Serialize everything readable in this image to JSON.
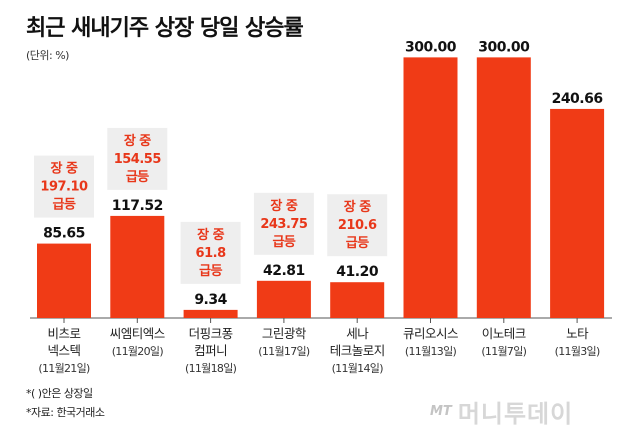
{
  "header": {
    "title": "최근 새내기주 상장 당일 상승률",
    "unit": "(단위: %)"
  },
  "chart_data": {
    "type": "bar",
    "title": "최근 새내기주 상장 당일 상승률",
    "ylabel": "",
    "xlabel": "",
    "ylim": [
      0,
      320
    ],
    "bar_color": "#f03b16",
    "callout_color": "#e8371a",
    "callout_bg": "#eeeeee",
    "categories": [
      {
        "name_lines": [
          "비츠로",
          "넥스텍"
        ],
        "date": "(11월21일)"
      },
      {
        "name_lines": [
          "씨엠티엑스"
        ],
        "date": "(11월20일)"
      },
      {
        "name_lines": [
          "더핑크퐁",
          "컴퍼니"
        ],
        "date": "(11월18일)"
      },
      {
        "name_lines": [
          "그린광학"
        ],
        "date": "(11월17일)"
      },
      {
        "name_lines": [
          "세나",
          "테크놀로지"
        ],
        "date": "(11월14일)"
      },
      {
        "name_lines": [
          "큐리오시스"
        ],
        "date": "(11월13일)"
      },
      {
        "name_lines": [
          "이노테크"
        ],
        "date": "(11월7일)"
      },
      {
        "name_lines": [
          "노타"
        ],
        "date": "(11월3일)"
      }
    ],
    "values": [
      85.65,
      117.52,
      9.34,
      42.81,
      41.2,
      300.0,
      300.0,
      240.66
    ],
    "value_labels": [
      "85.65",
      "117.52",
      "9.34",
      "42.81",
      "41.20",
      "300.00",
      "300.00",
      "240.66"
    ],
    "intraday_peaks": [
      {
        "line1": "장 중",
        "value": "197.10",
        "line3": "급등"
      },
      {
        "line1": "장 중",
        "value": "154.55",
        "line3": "급등"
      },
      {
        "line1": "장 중",
        "value": "61.8",
        "line3": "급등"
      },
      {
        "line1": "장 중",
        "value": "243.75",
        "line3": "급등"
      },
      {
        "line1": "장 중",
        "value": "210.6",
        "line3": "급등"
      },
      null,
      null,
      null
    ]
  },
  "footnotes": {
    "note1": "*( )안은 상장일",
    "note2": "*자료: 한국거래소"
  },
  "watermark": {
    "mt": "MT",
    "name": "머니투데이"
  }
}
